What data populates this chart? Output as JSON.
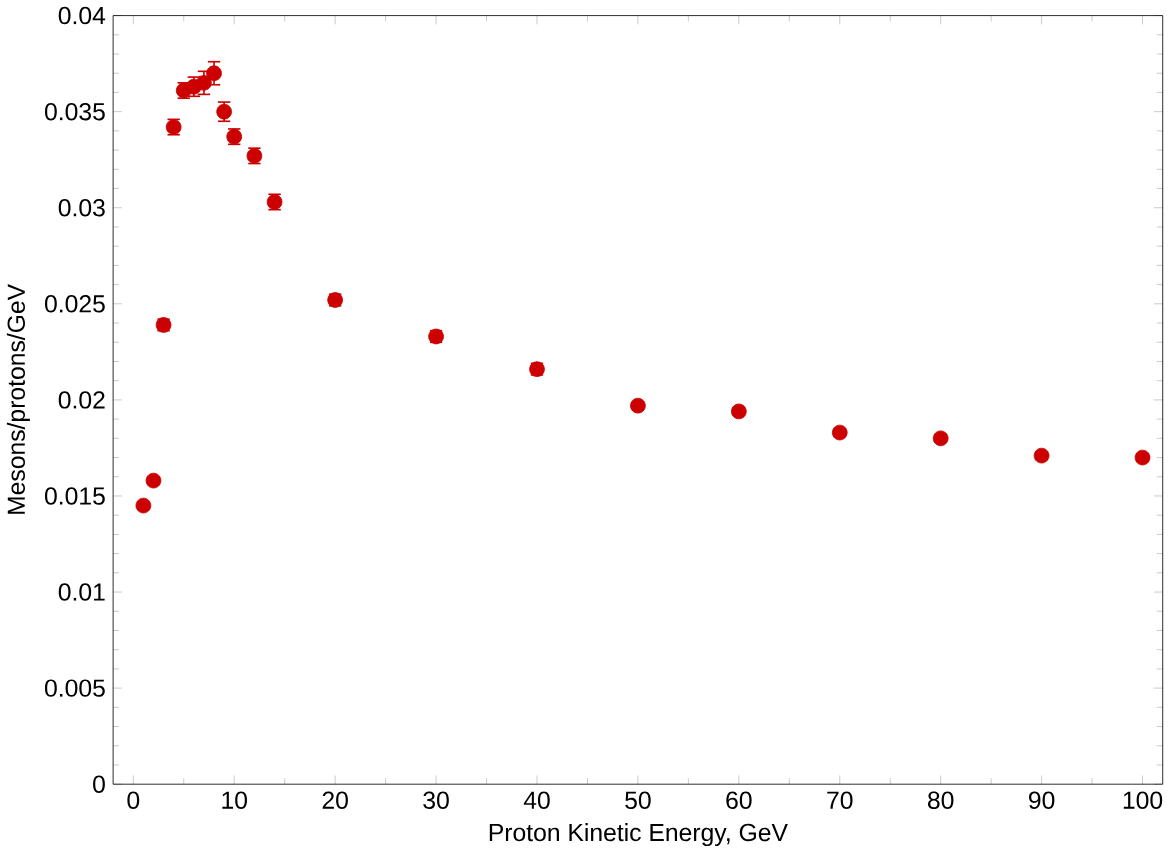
{
  "chart_data": {
    "type": "scatter",
    "xlabel": "Proton Kinetic Energy, GeV",
    "ylabel": "Mesons/protons/GeV",
    "x": [
      1,
      2,
      3,
      4,
      5,
      6,
      7,
      8,
      9,
      10,
      12,
      14,
      20,
      30,
      40,
      50,
      60,
      70,
      80,
      90,
      100
    ],
    "values": [
      0.0145,
      0.0158,
      0.0239,
      0.0342,
      0.0361,
      0.0363,
      0.0365,
      0.037,
      0.035,
      0.0337,
      0.0327,
      0.0303,
      0.0252,
      0.0233,
      0.0216,
      0.0197,
      0.0194,
      0.0183,
      0.018,
      0.0171,
      0.017
    ],
    "errors": [
      0.0002,
      0.0002,
      0.0003,
      0.0004,
      0.0004,
      0.0005,
      0.0006,
      0.0006,
      0.0005,
      0.0004,
      0.0004,
      0.0004,
      0.0003,
      0.0003,
      0.0003,
      0.0002,
      0.0002,
      0.0002,
      0.0002,
      0.0002,
      0.0002
    ],
    "color": "#cc0000",
    "marker": "circle",
    "xlim": [
      -2,
      102
    ],
    "ylim": [
      0,
      0.04
    ],
    "xticks": [
      0,
      10,
      20,
      30,
      40,
      50,
      60,
      70,
      80,
      90,
      100
    ],
    "yticks": [
      0,
      0.005,
      0.01,
      0.015,
      0.02,
      0.025,
      0.03,
      0.035,
      0.04
    ],
    "grid": false
  }
}
